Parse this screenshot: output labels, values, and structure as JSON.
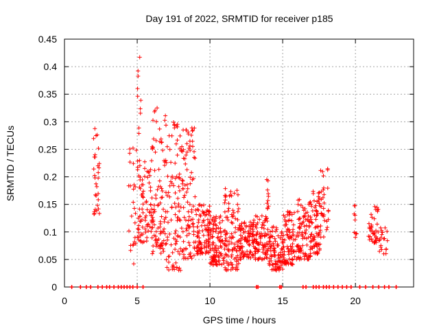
{
  "chart_data": {
    "type": "scatter",
    "title": "Day 191 of 2022, SRMTID for receiver p185",
    "xlabel": "GPS time / hours",
    "ylabel": "SRMTID / TECUs",
    "xlim": [
      0,
      24
    ],
    "ylim": [
      0,
      0.45
    ],
    "x_ticks": [
      0,
      5,
      10,
      15,
      20
    ],
    "x_tick_labels": [
      "0",
      "5",
      "10",
      "15",
      "20"
    ],
    "y_ticks": [
      0,
      0.05,
      0.1,
      0.15,
      0.2,
      0.25,
      0.3,
      0.35,
      0.4,
      0.45
    ],
    "y_tick_labels": [
      "0",
      "0.05",
      "0.1",
      "0.15",
      "0.2",
      "0.25",
      "0.3",
      "0.35",
      "0.4",
      "0.45"
    ],
    "grid": true,
    "marker": "+",
    "series_color": "#ff0000",
    "grid_color": "#a0a0a0",
    "zero_markers_x": [
      0.5,
      1.1,
      1.5,
      1.8,
      2.3,
      2.6,
      2.9,
      3.1,
      3.4,
      3.7,
      3.9,
      4.1,
      4.3,
      4.5,
      4.7,
      5.0,
      5.4,
      13.2,
      13.3,
      14.8,
      14.9,
      16.4,
      16.6,
      17.1,
      17.3,
      17.5,
      17.8,
      18.0,
      18.2,
      18.5,
      18.8,
      19.1,
      19.4,
      19.7,
      20.3,
      20.7,
      21.2,
      21.6,
      22.0,
      22.3,
      22.8
    ],
    "clusters": [
      {
        "x_range": [
          2.0,
          2.4
        ],
        "y_range": [
          0.13,
          0.29
        ],
        "count": 30
      },
      {
        "x_range": [
          4.4,
          5.0
        ],
        "y_range": [
          0.04,
          0.26
        ],
        "count": 25
      },
      {
        "x_range": [
          5.0,
          5.3
        ],
        "y_range": [
          0.27,
          0.42
        ],
        "count": 10
      },
      {
        "x_range": [
          5.0,
          6.0
        ],
        "y_range": [
          0.08,
          0.23
        ],
        "count": 80
      },
      {
        "x_range": [
          6.0,
          7.0
        ],
        "y_range": [
          0.06,
          0.33
        ],
        "count": 100
      },
      {
        "x_range": [
          7.0,
          8.0
        ],
        "y_range": [
          0.03,
          0.3
        ],
        "count": 90
      },
      {
        "x_range": [
          8.0,
          9.0
        ],
        "y_range": [
          0.05,
          0.29
        ],
        "count": 100
      },
      {
        "x_range": [
          9.0,
          10.0
        ],
        "y_range": [
          0.06,
          0.15
        ],
        "count": 100
      },
      {
        "x_range": [
          10.0,
          11.0
        ],
        "y_range": [
          0.04,
          0.13
        ],
        "count": 100
      },
      {
        "x_range": [
          11.0,
          12.0
        ],
        "y_range": [
          0.03,
          0.18
        ],
        "count": 100
      },
      {
        "x_range": [
          12.0,
          13.0
        ],
        "y_range": [
          0.05,
          0.12
        ],
        "count": 90
      },
      {
        "x_range": [
          13.0,
          14.0
        ],
        "y_range": [
          0.05,
          0.13
        ],
        "count": 90
      },
      {
        "x_range": [
          13.9,
          14.1
        ],
        "y_range": [
          0.14,
          0.2
        ],
        "count": 10
      },
      {
        "x_range": [
          14.0,
          15.0
        ],
        "y_range": [
          0.03,
          0.11
        ],
        "count": 90
      },
      {
        "x_range": [
          15.0,
          16.0
        ],
        "y_range": [
          0.04,
          0.14
        ],
        "count": 90
      },
      {
        "x_range": [
          16.0,
          17.0
        ],
        "y_range": [
          0.05,
          0.16
        ],
        "count": 100
      },
      {
        "x_range": [
          17.0,
          17.6
        ],
        "y_range": [
          0.06,
          0.18
        ],
        "count": 60
      },
      {
        "x_range": [
          17.6,
          18.2
        ],
        "y_range": [
          0.09,
          0.22
        ],
        "count": 30
      },
      {
        "x_range": [
          19.9,
          20.1
        ],
        "y_range": [
          0.09,
          0.15
        ],
        "count": 10
      },
      {
        "x_range": [
          20.9,
          21.6
        ],
        "y_range": [
          0.08,
          0.15
        ],
        "count": 40
      },
      {
        "x_range": [
          21.6,
          22.2
        ],
        "y_range": [
          0.06,
          0.11
        ],
        "count": 20
      }
    ]
  }
}
